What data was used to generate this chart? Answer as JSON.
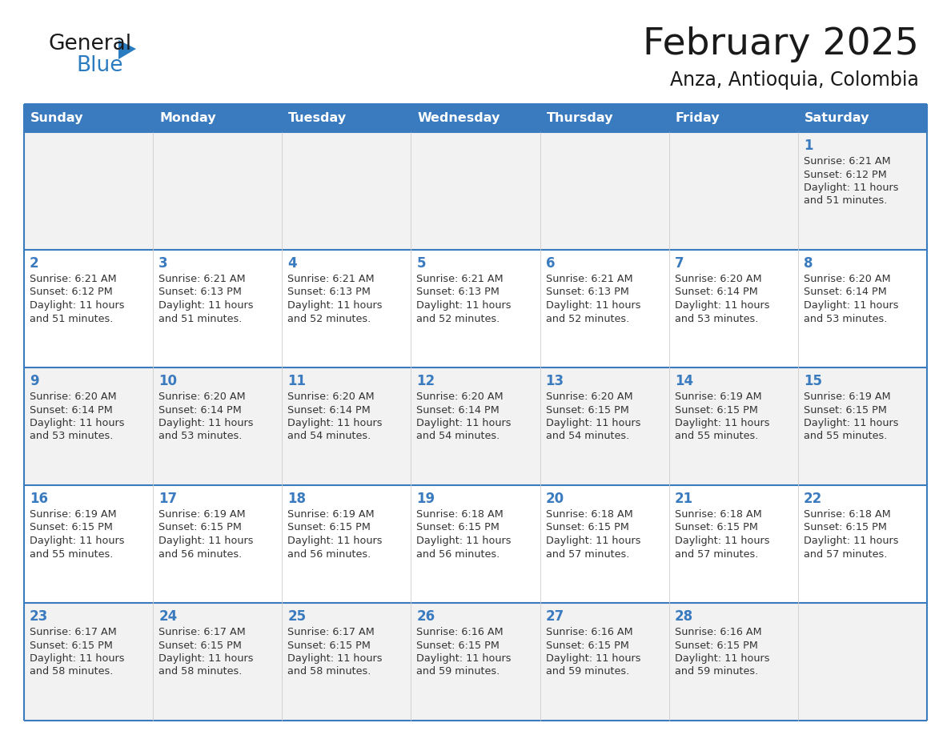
{
  "title": "February 2025",
  "subtitle": "Anza, Antioquia, Colombia",
  "header_bg": "#3a7abf",
  "header_text": "#ffffff",
  "header_days": [
    "Sunday",
    "Monday",
    "Tuesday",
    "Wednesday",
    "Thursday",
    "Friday",
    "Saturday"
  ],
  "row_bg_odd": "#f2f2f2",
  "row_bg_even": "#ffffff",
  "cell_border_color": "#3a7abf",
  "day_number_color": "#3a7abf",
  "info_text_color": "#333333",
  "logo_general_color": "#1a1a1a",
  "logo_blue_color": "#2a7bc0",
  "logo_triangle_color": "#2a7bc0",
  "title_color": "#1a1a1a",
  "calendar": [
    [
      null,
      null,
      null,
      null,
      null,
      null,
      {
        "day": 1,
        "sunrise": "6:21 AM",
        "sunset": "6:12 PM",
        "daylight": "11 hours and 51 minutes."
      }
    ],
    [
      {
        "day": 2,
        "sunrise": "6:21 AM",
        "sunset": "6:12 PM",
        "daylight": "11 hours and 51 minutes."
      },
      {
        "day": 3,
        "sunrise": "6:21 AM",
        "sunset": "6:13 PM",
        "daylight": "11 hours and 51 minutes."
      },
      {
        "day": 4,
        "sunrise": "6:21 AM",
        "sunset": "6:13 PM",
        "daylight": "11 hours and 52 minutes."
      },
      {
        "day": 5,
        "sunrise": "6:21 AM",
        "sunset": "6:13 PM",
        "daylight": "11 hours and 52 minutes."
      },
      {
        "day": 6,
        "sunrise": "6:21 AM",
        "sunset": "6:13 PM",
        "daylight": "11 hours and 52 minutes."
      },
      {
        "day": 7,
        "sunrise": "6:20 AM",
        "sunset": "6:14 PM",
        "daylight": "11 hours and 53 minutes."
      },
      {
        "day": 8,
        "sunrise": "6:20 AM",
        "sunset": "6:14 PM",
        "daylight": "11 hours and 53 minutes."
      }
    ],
    [
      {
        "day": 9,
        "sunrise": "6:20 AM",
        "sunset": "6:14 PM",
        "daylight": "11 hours and 53 minutes."
      },
      {
        "day": 10,
        "sunrise": "6:20 AM",
        "sunset": "6:14 PM",
        "daylight": "11 hours and 53 minutes."
      },
      {
        "day": 11,
        "sunrise": "6:20 AM",
        "sunset": "6:14 PM",
        "daylight": "11 hours and 54 minutes."
      },
      {
        "day": 12,
        "sunrise": "6:20 AM",
        "sunset": "6:14 PM",
        "daylight": "11 hours and 54 minutes."
      },
      {
        "day": 13,
        "sunrise": "6:20 AM",
        "sunset": "6:15 PM",
        "daylight": "11 hours and 54 minutes."
      },
      {
        "day": 14,
        "sunrise": "6:19 AM",
        "sunset": "6:15 PM",
        "daylight": "11 hours and 55 minutes."
      },
      {
        "day": 15,
        "sunrise": "6:19 AM",
        "sunset": "6:15 PM",
        "daylight": "11 hours and 55 minutes."
      }
    ],
    [
      {
        "day": 16,
        "sunrise": "6:19 AM",
        "sunset": "6:15 PM",
        "daylight": "11 hours and 55 minutes."
      },
      {
        "day": 17,
        "sunrise": "6:19 AM",
        "sunset": "6:15 PM",
        "daylight": "11 hours and 56 minutes."
      },
      {
        "day": 18,
        "sunrise": "6:19 AM",
        "sunset": "6:15 PM",
        "daylight": "11 hours and 56 minutes."
      },
      {
        "day": 19,
        "sunrise": "6:18 AM",
        "sunset": "6:15 PM",
        "daylight": "11 hours and 56 minutes."
      },
      {
        "day": 20,
        "sunrise": "6:18 AM",
        "sunset": "6:15 PM",
        "daylight": "11 hours and 57 minutes."
      },
      {
        "day": 21,
        "sunrise": "6:18 AM",
        "sunset": "6:15 PM",
        "daylight": "11 hours and 57 minutes."
      },
      {
        "day": 22,
        "sunrise": "6:18 AM",
        "sunset": "6:15 PM",
        "daylight": "11 hours and 57 minutes."
      }
    ],
    [
      {
        "day": 23,
        "sunrise": "6:17 AM",
        "sunset": "6:15 PM",
        "daylight": "11 hours and 58 minutes."
      },
      {
        "day": 24,
        "sunrise": "6:17 AM",
        "sunset": "6:15 PM",
        "daylight": "11 hours and 58 minutes."
      },
      {
        "day": 25,
        "sunrise": "6:17 AM",
        "sunset": "6:15 PM",
        "daylight": "11 hours and 58 minutes."
      },
      {
        "day": 26,
        "sunrise": "6:16 AM",
        "sunset": "6:15 PM",
        "daylight": "11 hours and 59 minutes."
      },
      {
        "day": 27,
        "sunrise": "6:16 AM",
        "sunset": "6:15 PM",
        "daylight": "11 hours and 59 minutes."
      },
      {
        "day": 28,
        "sunrise": "6:16 AM",
        "sunset": "6:15 PM",
        "daylight": "11 hours and 59 minutes."
      },
      null
    ]
  ]
}
